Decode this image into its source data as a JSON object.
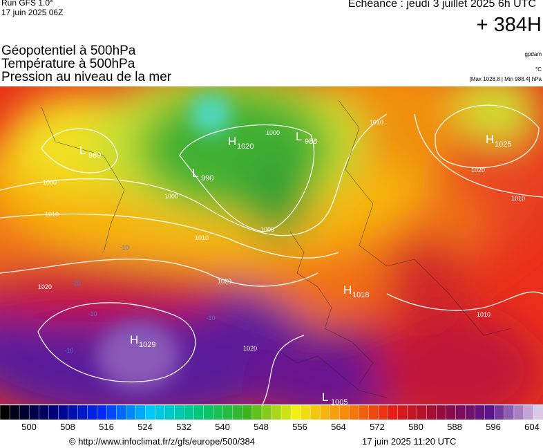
{
  "header": {
    "run": "Run GFS 1.0°",
    "run_date": "17 juin 2025 06Z",
    "echeance": "Echéance : jeudi 3 juillet 2025 6h UTC",
    "lead": "+ 384H",
    "fields": [
      "Géopotentiel à 500hPa",
      "Température à 500hPa",
      "Pression au niveau de la mer"
    ],
    "units": [
      "gpdam",
      "°C",
      "[Max 1028.8 | Min 988.4] hPa"
    ]
  },
  "centers": [
    {
      "kind": "L",
      "pressure": 989
    },
    {
      "kind": "H",
      "pressure": 1020
    },
    {
      "kind": "L",
      "pressure": 988
    },
    {
      "kind": "L",
      "pressure": 990
    },
    {
      "kind": "H",
      "pressure": 1025
    },
    {
      "kind": "H",
      "pressure": 1018
    },
    {
      "kind": "H",
      "pressure": 1029
    },
    {
      "kind": "L",
      "pressure": 1005
    }
  ],
  "isobar_labels": [
    1010,
    1000,
    1000,
    1010,
    1010,
    1020,
    1020,
    1020,
    1020,
    1010,
    1010,
    1000,
    1000
  ],
  "temperature_labels": [
    -10,
    -10,
    -10,
    -10,
    -10
  ],
  "colorbar": {
    "ticks": [
      500,
      508,
      516,
      524,
      532,
      540,
      548,
      556,
      564,
      572,
      580,
      588,
      596,
      604
    ]
  },
  "footer": {
    "source": "© http://www.infoclimat.fr/z/gfs/europe/500/384",
    "generated": "17 juin 2025 11:20 UTC"
  }
}
